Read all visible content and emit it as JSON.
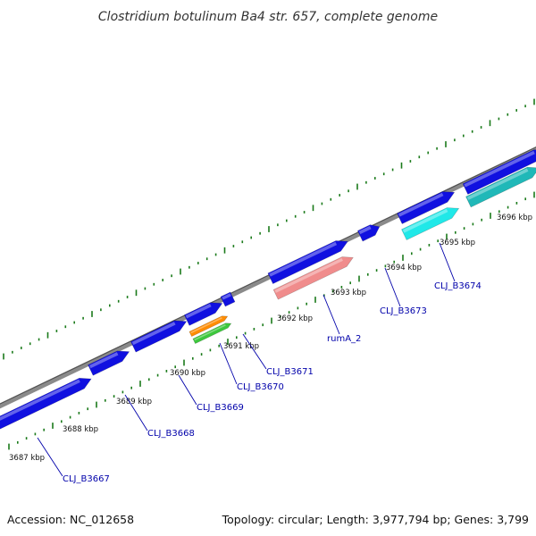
{
  "title": "Clostridium botulinum Ba4 str. 657, complete genome",
  "footer": {
    "accession": "Accession: NC_012658",
    "summary": "Topology: circular; Length: 3,977,794 bp; Genes: 3,799"
  },
  "colors": {
    "backbone": "#8a8a8a",
    "tick_green": "#1a7a1a",
    "gene_blue": "#1010e0",
    "gene_cyan": "#20e8e8",
    "gene_teal": "#20b8b8",
    "gene_pink": "#f08c8c",
    "gene_orange": "#ff8c00",
    "gene_green": "#3cc83c",
    "label_blue": "#0000aa"
  },
  "tick_labels": [
    "3687 kbp",
    "3688 kbp",
    "3689 kbp",
    "3690 kbp",
    "3691 kbp",
    "3692 kbp",
    "3693 kbp",
    "3694 kbp",
    "3695 kbp",
    "3696 kbp"
  ],
  "gene_labels": [
    "CLJ_B3667",
    "CLJ_B3668",
    "CLJ_B3669",
    "CLJ_B3670",
    "CLJ_B3671",
    "rumA_2",
    "CLJ_B3673",
    "CLJ_B3674"
  ]
}
